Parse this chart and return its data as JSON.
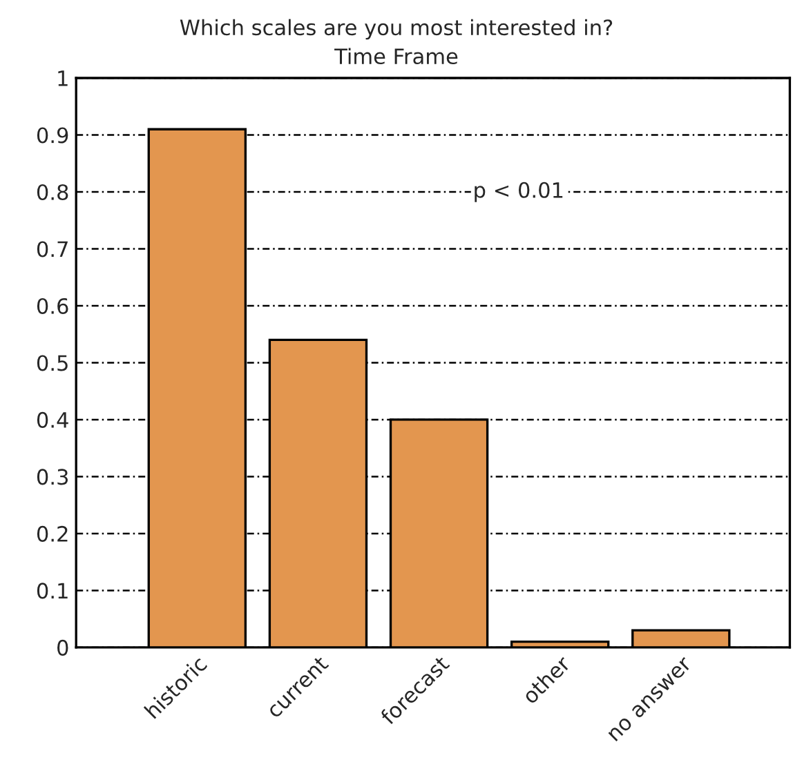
{
  "chart_data": {
    "type": "bar",
    "title": "Which scales are you most interested in?",
    "subtitle": "Time Frame",
    "categories": [
      "historic",
      "current",
      "forecast",
      "other",
      "no answer"
    ],
    "values": [
      0.91,
      0.54,
      0.4,
      0.01,
      0.03
    ],
    "color": "#e3964f",
    "ylim": [
      0,
      1
    ],
    "yticks": [
      0,
      0.1,
      0.2,
      0.3,
      0.4,
      0.5,
      0.6,
      0.7,
      0.8,
      0.9,
      1
    ],
    "grid": "y",
    "annotations": [
      "p < 0.01"
    ]
  }
}
